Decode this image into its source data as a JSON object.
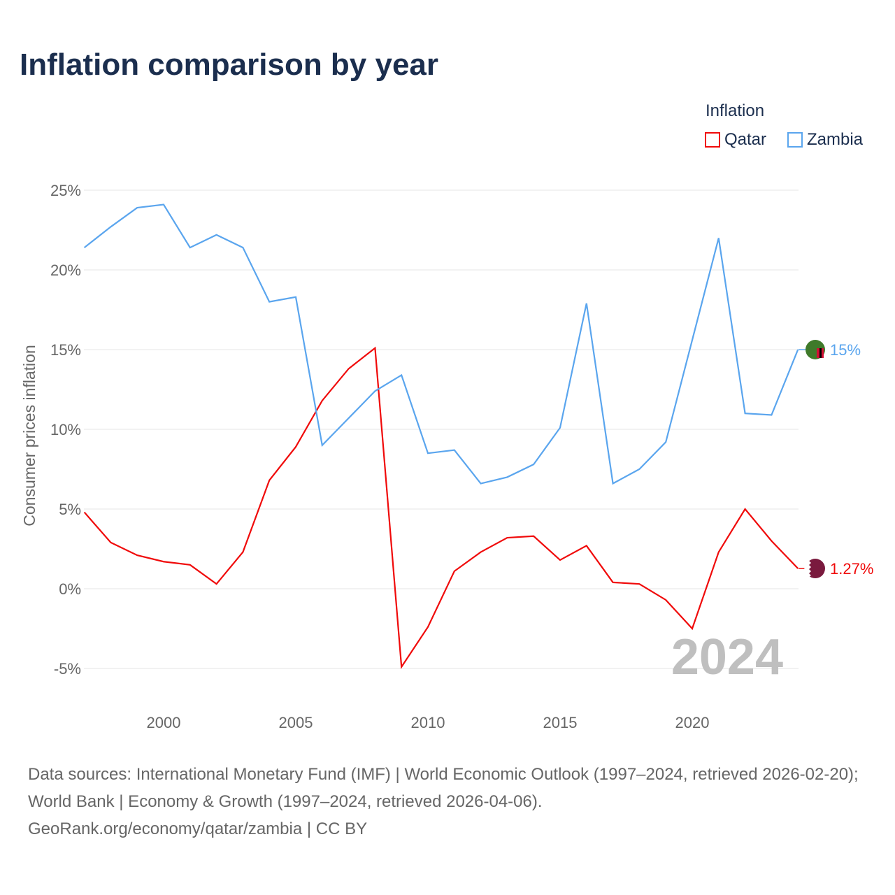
{
  "title": "Inflation comparison by year",
  "legend": {
    "title": "Inflation",
    "items": [
      {
        "name": "Qatar",
        "color": "#f00a0a"
      },
      {
        "name": "Zambia",
        "color": "#5aa5ee"
      }
    ]
  },
  "source": {
    "line1": "Data sources: International Monetary Fund (IMF) | World Economic Outlook (1997–2024, retrieved 2026-02-20); World Bank | Economy & Growth (1997–2024, retrieved 2026-04-06).",
    "line2": "GeoRank.org/economy/qatar/zambia | CC BY"
  },
  "chart_data": {
    "type": "line",
    "title": "Inflation comparison by year",
    "ylabel": "Consumer prices inflation",
    "xlabel": "",
    "ylim": [
      -5,
      25
    ],
    "xlim": [
      1997,
      2024
    ],
    "yticks": [
      "-5%",
      "0%",
      "5%",
      "10%",
      "15%",
      "20%",
      "25%"
    ],
    "ytick_values": [
      -5,
      0,
      5,
      10,
      15,
      20,
      25
    ],
    "xticks": [
      "2000",
      "2005",
      "2010",
      "2015",
      "2020"
    ],
    "xtick_values": [
      2000,
      2005,
      2010,
      2015,
      2020
    ],
    "year_label": "2024",
    "x": [
      1997,
      1998,
      1999,
      2000,
      2001,
      2002,
      2003,
      2004,
      2005,
      2006,
      2007,
      2008,
      2009,
      2010,
      2011,
      2012,
      2013,
      2014,
      2015,
      2016,
      2017,
      2018,
      2019,
      2020,
      2021,
      2022,
      2023,
      2024
    ],
    "series": [
      {
        "name": "Qatar",
        "color": "#f00a0a",
        "end_label": "1.27%",
        "values": [
          4.8,
          2.9,
          2.1,
          1.7,
          1.5,
          0.3,
          2.3,
          6.8,
          8.9,
          11.8,
          13.8,
          15.1,
          -4.9,
          -2.4,
          1.1,
          2.3,
          3.2,
          3.3,
          1.8,
          2.7,
          0.4,
          0.3,
          -0.7,
          -2.5,
          2.3,
          5.0,
          3.0,
          1.27
        ]
      },
      {
        "name": "Zambia",
        "color": "#5aa5ee",
        "end_label": "15%",
        "values": [
          21.4,
          22.7,
          23.9,
          24.1,
          21.4,
          22.2,
          21.4,
          18.0,
          18.3,
          9.0,
          10.7,
          12.4,
          13.4,
          8.5,
          8.7,
          6.6,
          7.0,
          7.8,
          10.1,
          17.9,
          6.6,
          7.5,
          9.2,
          15.6,
          22.0,
          11.0,
          10.9,
          15.0
        ]
      }
    ]
  }
}
